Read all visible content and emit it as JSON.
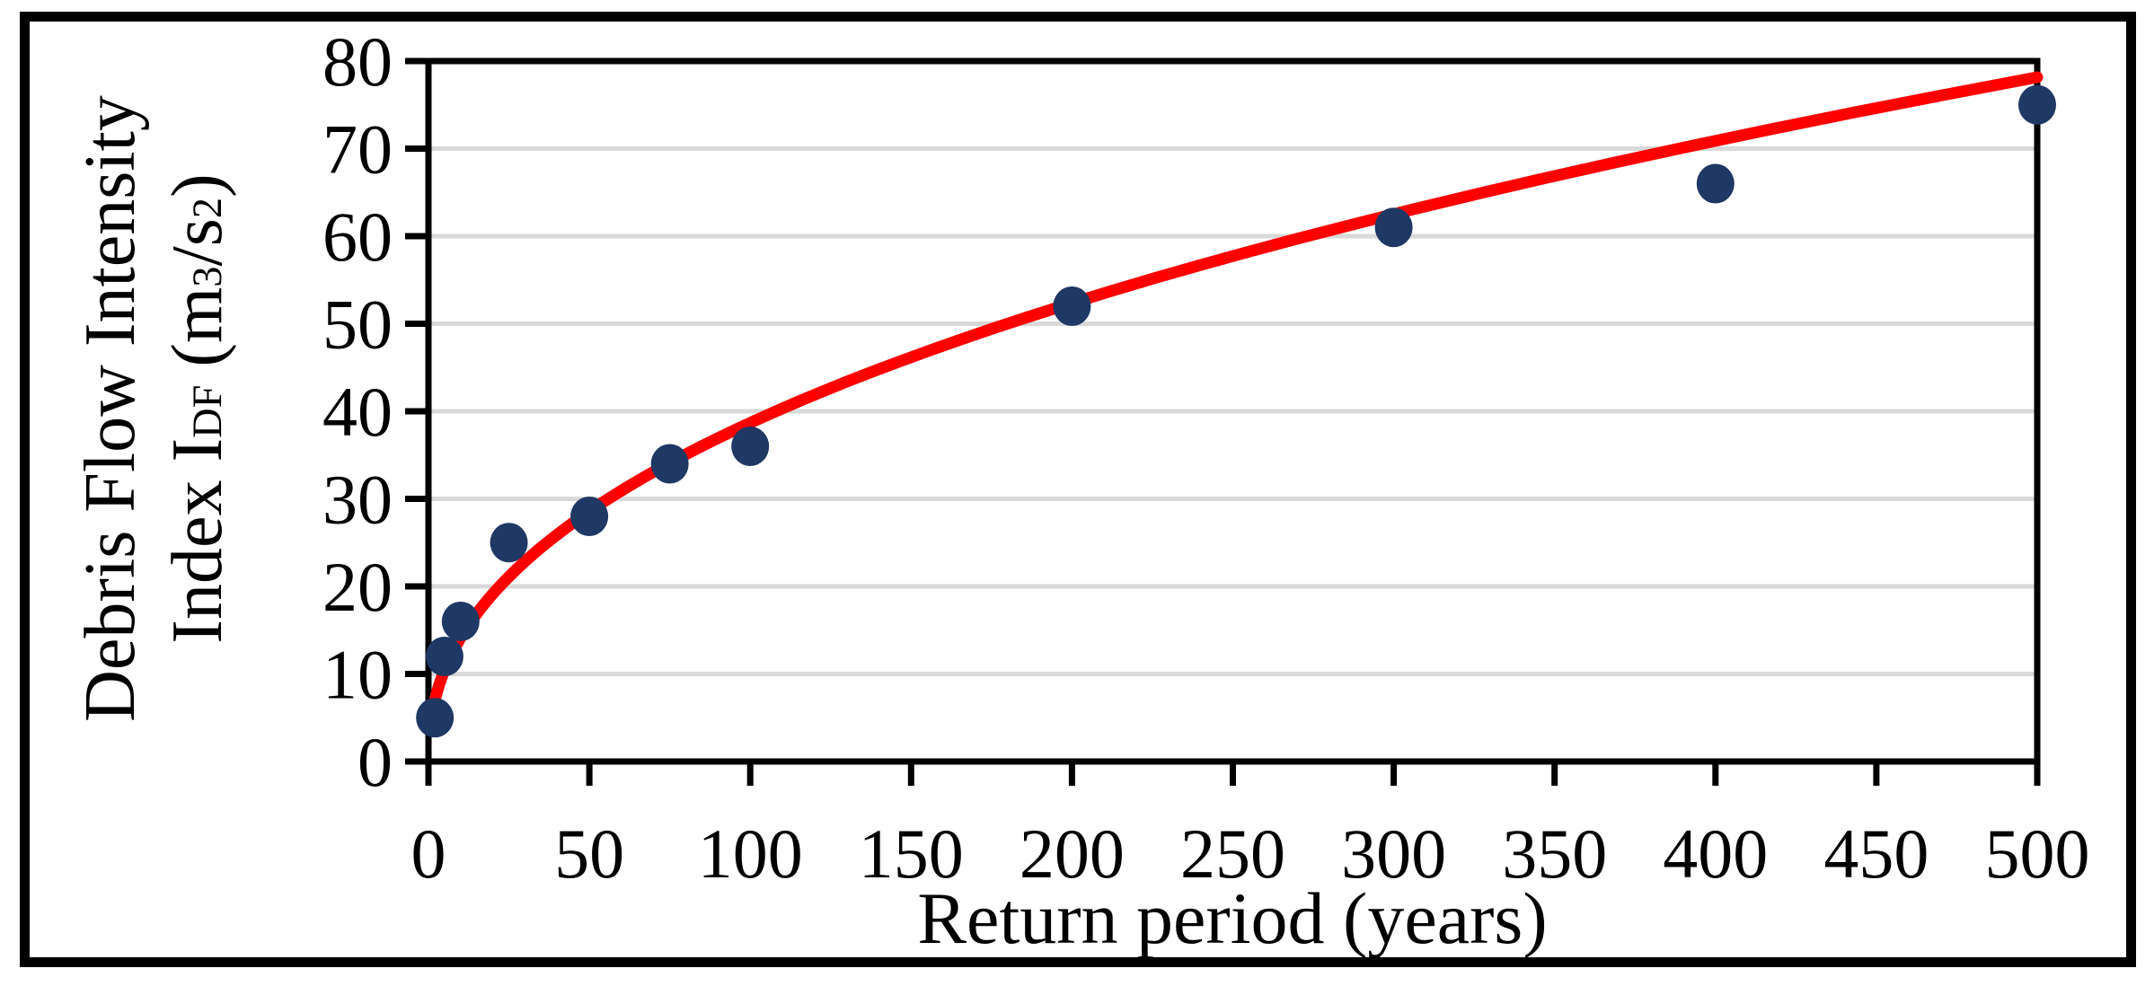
{
  "figure": {
    "background": "#FFFFFF",
    "border_color": "#000000"
  },
  "chart_data": {
    "type": "scatter",
    "title": "",
    "xlabel": "Return period (years)",
    "ylabel_line1": "Debris Flow Intensity",
    "ylabel_line2_parts": [
      {
        "t": "Index I",
        "s": "normal"
      },
      {
        "t": "DF",
        "s": "sub"
      },
      {
        "t": " (m",
        "s": "normal"
      },
      {
        "t": "3",
        "s": "sup"
      },
      {
        "t": "/s",
        "s": "normal"
      },
      {
        "t": "2",
        "s": "sup"
      },
      {
        "t": ")",
        "s": "normal"
      }
    ],
    "points": {
      "x": [
        2,
        5,
        10,
        25,
        50,
        75,
        100,
        200,
        300,
        400,
        500
      ],
      "y": [
        5,
        12,
        16,
        25,
        28,
        34,
        36,
        52,
        61,
        66,
        75
      ]
    },
    "trendline": {
      "type": "power",
      "coefficient": 5.17,
      "exponent": 0.437,
      "x_start": 2,
      "x_end": 500,
      "color": "#FF0000"
    },
    "xlim": [
      0,
      500
    ],
    "ylim": [
      0,
      80
    ],
    "xticks": [
      0,
      50,
      100,
      150,
      200,
      250,
      300,
      350,
      400,
      450,
      500
    ],
    "yticks": [
      0,
      10,
      20,
      30,
      40,
      50,
      60,
      70,
      80
    ],
    "grid": "horizontal",
    "legend": "none",
    "marker_color": "#1F3864",
    "gridline_color": "#D9D9D9",
    "axis_color": "#000000"
  }
}
